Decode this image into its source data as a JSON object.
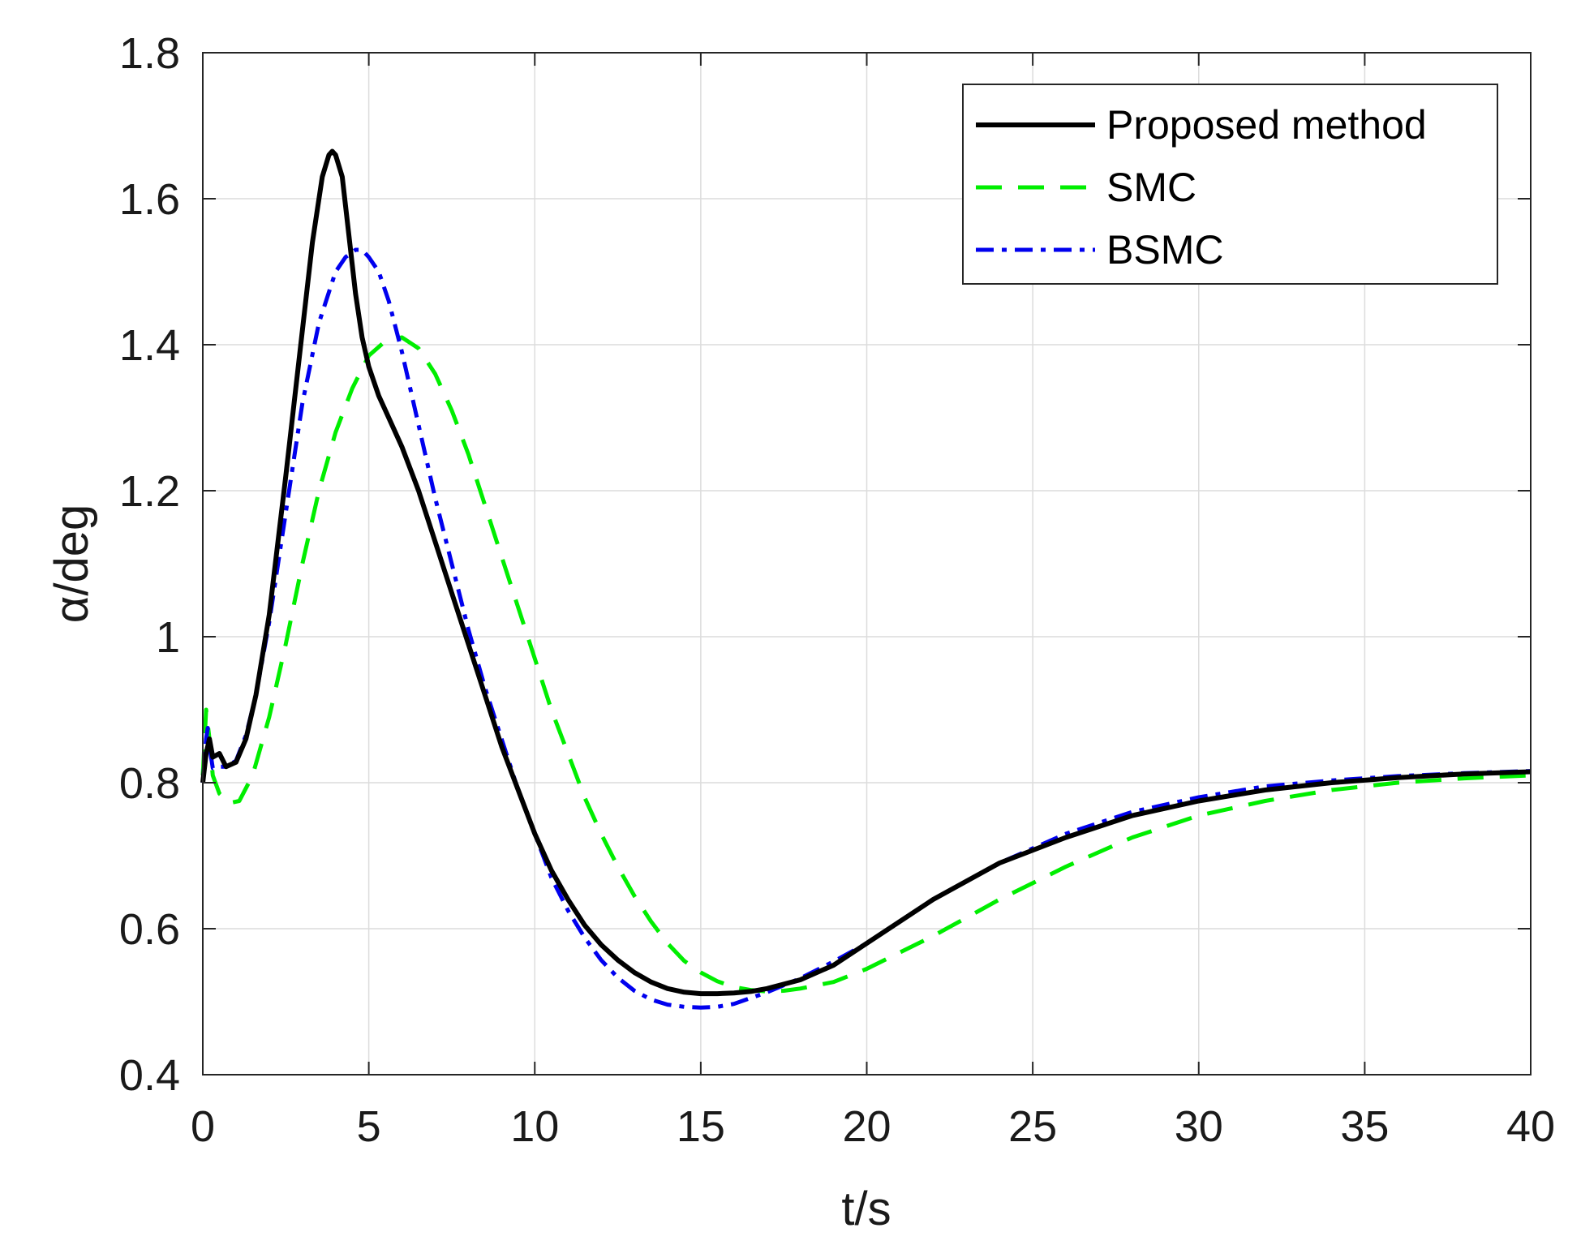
{
  "chart_data": {
    "type": "line",
    "title": "",
    "xlabel": "t/s",
    "ylabel": "α/deg",
    "xlim": [
      0,
      40
    ],
    "ylim": [
      0.4,
      1.8
    ],
    "x_ticks": [
      0,
      5,
      10,
      15,
      20,
      25,
      30,
      35,
      40
    ],
    "y_ticks": [
      0.4,
      0.6,
      0.8,
      1.0,
      1.2,
      1.4,
      1.6,
      1.8
    ],
    "x_tick_labels": [
      "0",
      "5",
      "10",
      "15",
      "20",
      "25",
      "30",
      "35",
      "40"
    ],
    "y_tick_labels": [
      "0.4",
      "0.6",
      "0.8",
      "1",
      "1.2",
      "1.4",
      "1.6",
      "1.8"
    ],
    "grid": true,
    "legend_position": "top-right",
    "series": [
      {
        "name": "Proposed method",
        "color": "#000000",
        "style": "solid",
        "x": [
          0,
          0.1,
          0.2,
          0.3,
          0.5,
          0.7,
          1.0,
          1.3,
          1.6,
          2.0,
          2.5,
          3.0,
          3.3,
          3.6,
          3.8,
          3.9,
          4.0,
          4.2,
          4.4,
          4.6,
          4.8,
          5.0,
          5.3,
          5.6,
          6.0,
          6.5,
          7.0,
          7.5,
          8.0,
          8.5,
          9.0,
          9.5,
          10,
          10.5,
          11,
          11.5,
          12,
          12.5,
          13,
          13.5,
          14,
          14.5,
          15,
          15.5,
          16,
          16.5,
          17,
          18,
          19,
          20,
          22,
          24,
          26,
          28,
          30,
          32,
          34,
          36,
          38,
          40
        ],
        "values": [
          0.8,
          0.84,
          0.86,
          0.835,
          0.84,
          0.822,
          0.828,
          0.86,
          0.92,
          1.03,
          1.22,
          1.42,
          1.54,
          1.63,
          1.66,
          1.665,
          1.66,
          1.63,
          1.55,
          1.47,
          1.41,
          1.37,
          1.33,
          1.3,
          1.26,
          1.2,
          1.13,
          1.06,
          0.99,
          0.92,
          0.85,
          0.79,
          0.73,
          0.68,
          0.64,
          0.605,
          0.578,
          0.557,
          0.54,
          0.527,
          0.518,
          0.513,
          0.511,
          0.511,
          0.512,
          0.514,
          0.518,
          0.53,
          0.55,
          0.58,
          0.64,
          0.69,
          0.725,
          0.755,
          0.775,
          0.79,
          0.8,
          0.807,
          0.812,
          0.815
        ]
      },
      {
        "name": "SMC",
        "color": "#00ee00",
        "style": "dashed",
        "x": [
          0,
          0.1,
          0.2,
          0.3,
          0.5,
          0.8,
          1.1,
          1.5,
          2.0,
          2.5,
          3.0,
          3.5,
          4.0,
          4.5,
          5.0,
          5.5,
          6.0,
          6.5,
          7.0,
          7.5,
          8.0,
          8.5,
          9.0,
          9.5,
          10,
          10.5,
          11,
          11.5,
          12,
          12.5,
          13,
          13.5,
          14,
          14.5,
          15,
          15.5,
          16,
          16.5,
          17,
          17.5,
          18,
          19,
          20,
          22,
          24,
          26,
          28,
          30,
          32,
          34,
          36,
          38,
          40
        ],
        "values": [
          0.81,
          0.9,
          0.86,
          0.81,
          0.785,
          0.772,
          0.775,
          0.81,
          0.89,
          0.99,
          1.1,
          1.2,
          1.28,
          1.34,
          1.385,
          1.405,
          1.41,
          1.395,
          1.36,
          1.31,
          1.25,
          1.18,
          1.11,
          1.04,
          0.97,
          0.9,
          0.84,
          0.78,
          0.73,
          0.685,
          0.645,
          0.61,
          0.58,
          0.556,
          0.54,
          0.528,
          0.52,
          0.516,
          0.514,
          0.515,
          0.518,
          0.527,
          0.545,
          0.59,
          0.64,
          0.685,
          0.725,
          0.755,
          0.775,
          0.79,
          0.8,
          0.806,
          0.81
        ]
      },
      {
        "name": "BSMC",
        "color": "#0000ee",
        "style": "dashdot",
        "x": [
          0,
          0.1,
          0.15,
          0.2,
          0.3,
          0.5,
          0.7,
          1.0,
          1.3,
          1.6,
          2.0,
          2.5,
          3.0,
          3.5,
          4.0,
          4.3,
          4.6,
          4.8,
          5.0,
          5.3,
          5.6,
          6.0,
          6.5,
          7.0,
          7.5,
          8.0,
          8.5,
          9.0,
          9.5,
          10,
          10.5,
          11,
          11.5,
          12,
          12.5,
          13,
          13.5,
          14,
          14.5,
          15,
          15.5,
          16,
          16.5,
          17,
          18,
          19,
          20,
          22,
          24,
          26,
          28,
          30,
          32,
          34,
          36,
          38,
          40
        ],
        "values": [
          0.8,
          0.86,
          0.875,
          0.85,
          0.82,
          0.822,
          0.822,
          0.83,
          0.865,
          0.92,
          1.02,
          1.17,
          1.32,
          1.43,
          1.5,
          1.52,
          1.53,
          1.53,
          1.52,
          1.5,
          1.46,
          1.39,
          1.29,
          1.19,
          1.1,
          1.01,
          0.93,
          0.86,
          0.79,
          0.73,
          0.67,
          0.625,
          0.588,
          0.557,
          0.533,
          0.515,
          0.503,
          0.496,
          0.493,
          0.492,
          0.493,
          0.497,
          0.505,
          0.513,
          0.532,
          0.555,
          0.58,
          0.64,
          0.69,
          0.73,
          0.76,
          0.78,
          0.795,
          0.803,
          0.809,
          0.813,
          0.816
        ]
      }
    ]
  }
}
